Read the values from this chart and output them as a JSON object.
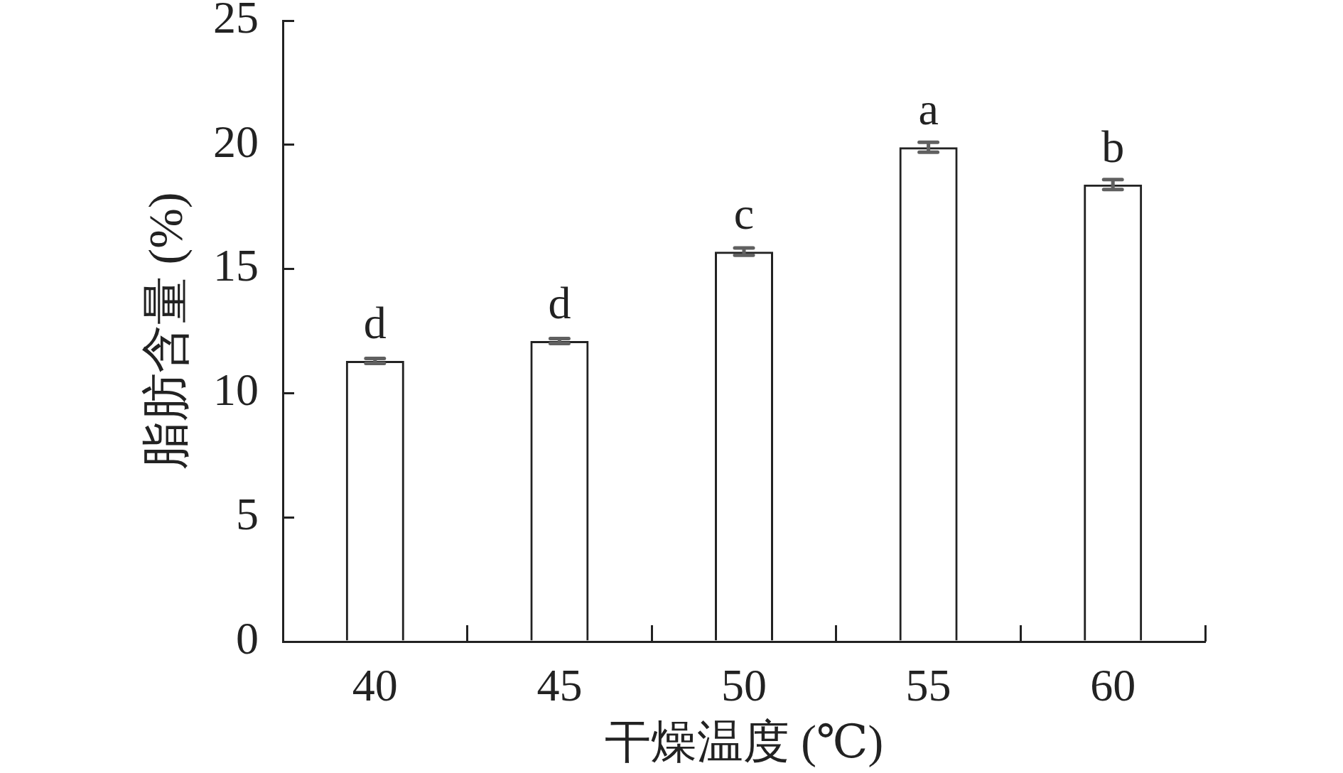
{
  "chart_data": {
    "type": "bar",
    "categories": [
      "40",
      "45",
      "50",
      "55",
      "60"
    ],
    "values": [
      11.3,
      12.1,
      15.7,
      19.9,
      18.4
    ],
    "errors": [
      0.1,
      0.1,
      0.15,
      0.2,
      0.2
    ],
    "color": "#222222",
    "xlabel": "干燥温度 (℃)",
    "ylabel": "脂肪含量 (%)",
    "ylim": [
      0,
      25
    ],
    "yticks": [
      0,
      5,
      10,
      15,
      20,
      25
    ],
    "annotations": [
      {
        "text": "d",
        "x": "40",
        "y": 11.3
      },
      {
        "text": "d",
        "x": "45",
        "y": 12.1
      },
      {
        "text": "c",
        "x": "50",
        "y": 15.7
      },
      {
        "text": "a",
        "x": "55",
        "y": 19.9
      },
      {
        "text": "b",
        "x": "60",
        "y": 18.4
      }
    ]
  }
}
